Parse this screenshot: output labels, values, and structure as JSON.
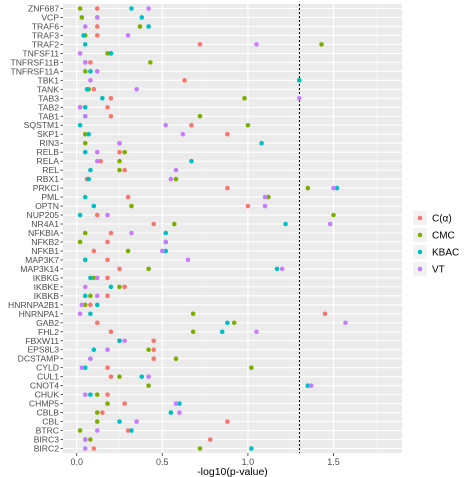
{
  "chart_data": {
    "type": "scatter",
    "xlabel": "-log10(p-value)",
    "ylabel": "",
    "xlim": [
      -0.08,
      1.9
    ],
    "x_ticks": [
      "0.0",
      "0.5",
      "1.0",
      "1.5"
    ],
    "x_tick_values": [
      0,
      0.5,
      1.0,
      1.5
    ],
    "threshold": 1.301,
    "grid": true,
    "legend_position": "right",
    "categories": [
      "ZNF687",
      "VCP",
      "TRAF6",
      "TRAF3",
      "TRAF2",
      "TNFSF11",
      "TNFRSF11B",
      "TNFRSF11A",
      "TBK1",
      "TANK",
      "TAB3",
      "TAB2",
      "TAB1",
      "SQSTM1",
      "SKP1",
      "RIN3",
      "RELB",
      "RELA",
      "REL",
      "RBX1",
      "PRKCI",
      "PML",
      "OPTN",
      "NUP205",
      "NR4A1",
      "NFKBIA",
      "NFKB2",
      "NFKB1",
      "MAP3K7",
      "MAP3K14",
      "IKBKG",
      "IKBKE",
      "IKBKB",
      "HNRNPA2B1",
      "HNRNPA1",
      "GAB2",
      "FHL2",
      "FBXW11",
      "EPS8L3",
      "DCSTAMP",
      "CYLD",
      "CUL1",
      "CNOT4",
      "CHUK",
      "CHMP5",
      "CBLB",
      "CBL",
      "BTRC",
      "BIRC3",
      "BIRC2"
    ],
    "series": [
      {
        "name": "C(α)",
        "color": "#F8766D",
        "values": [
          0.12,
          0.12,
          0.12,
          0.12,
          0.72,
          0.2,
          0.08,
          0.12,
          0.63,
          0.1,
          0.2,
          0.18,
          0.2,
          0.67,
          0.88,
          0.25,
          0.25,
          0.14,
          0.28,
          0.06,
          0.88,
          0.3,
          1.0,
          0.12,
          0.45,
          0.2,
          0.18,
          0.1,
          0.18,
          0.25,
          0.18,
          0.28,
          0.18,
          0.08,
          1.45,
          0.12,
          0.2,
          0.45,
          0.45,
          0.45,
          0.18,
          0.2,
          1.35,
          0.18,
          0.28,
          0.15,
          0.88,
          0.3,
          0.78,
          0.1
        ]
      },
      {
        "name": "CMC",
        "color": "#7CAE00",
        "values": [
          0.02,
          0.03,
          0.37,
          0.05,
          1.43,
          0.18,
          0.43,
          0.05,
          1.3,
          0.07,
          0.98,
          0.02,
          0.72,
          1.0,
          0.05,
          0.05,
          0.28,
          0.25,
          0.25,
          0.58,
          1.35,
          1.12,
          0.32,
          1.5,
          0.57,
          0.05,
          0.02,
          0.3,
          0.05,
          0.42,
          0.1,
          0.25,
          0.08,
          0.05,
          0.68,
          0.92,
          0.68,
          0.25,
          0.42,
          0.58,
          1.02,
          0.25,
          0.42,
          0.12,
          0.18,
          0.12,
          0.12,
          0.02,
          0.08,
          0.72
        ]
      },
      {
        "name": "KBAC",
        "color": "#00BFC4",
        "values": [
          0.32,
          0.38,
          0.42,
          0.04,
          0.05,
          0.2,
          0.05,
          0.08,
          1.3,
          0.06,
          0.15,
          0.05,
          0.05,
          0.02,
          0.07,
          1.08,
          0.05,
          0.67,
          0.08,
          0.07,
          1.52,
          0.05,
          0.1,
          0.02,
          1.22,
          0.52,
          0.52,
          0.52,
          0.05,
          1.17,
          0.08,
          0.2,
          0.05,
          0.12,
          0.08,
          0.88,
          0.85,
          0.25,
          0.1,
          0.08,
          0.05,
          0.38,
          1.35,
          0.08,
          0.6,
          0.55,
          0.25,
          0.32,
          0.05,
          1.02
        ]
      },
      {
        "name": "VT",
        "color": "#C77CFF",
        "values": [
          0.42,
          0.12,
          0.05,
          0.3,
          1.05,
          0.02,
          0.05,
          0.12,
          0.08,
          0.35,
          1.3,
          0.02,
          0.05,
          0.52,
          0.62,
          0.25,
          0.12,
          0.12,
          0.58,
          0.55,
          1.5,
          1.1,
          1.1,
          0.18,
          1.48,
          0.32,
          0.52,
          0.5,
          0.65,
          1.2,
          0.12,
          0.05,
          0.12,
          0.03,
          0.02,
          1.57,
          1.05,
          0.28,
          0.18,
          0.08,
          0.03,
          0.42,
          1.37,
          0.05,
          0.58,
          0.6,
          0.35,
          0.12,
          0.05,
          0.05
        ]
      }
    ]
  }
}
